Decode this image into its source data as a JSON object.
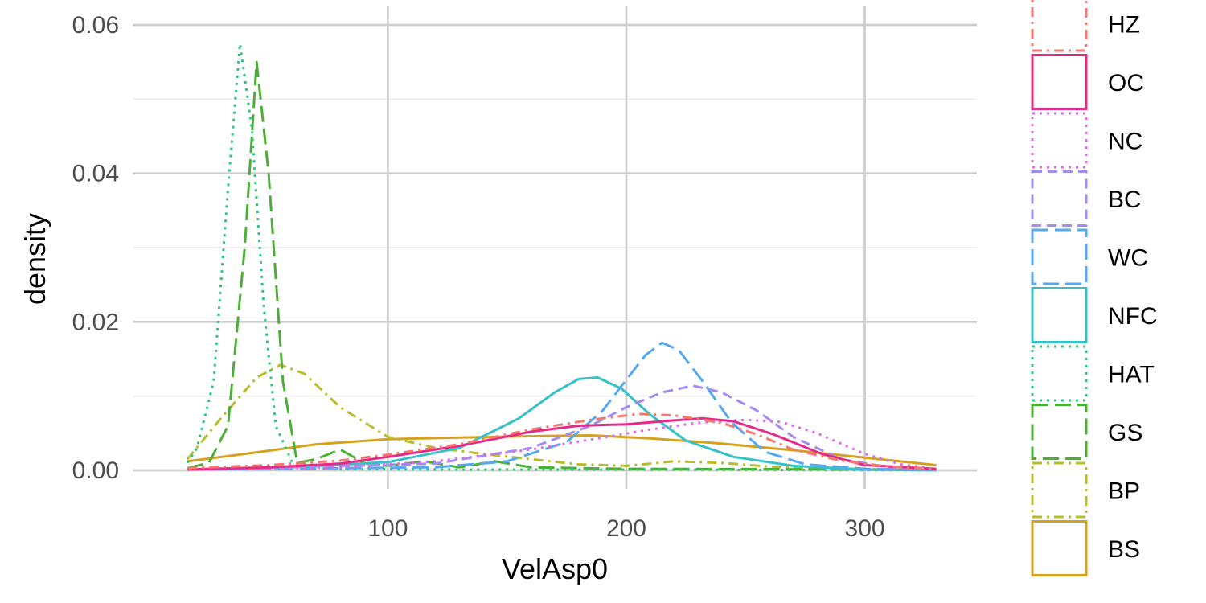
{
  "chart_data": {
    "type": "line",
    "xlabel": "VelAsp0",
    "ylabel": "density",
    "xlim": [
      -7,
      347
    ],
    "ylim": [
      -0.0025,
      0.0625
    ],
    "x_ticks": [
      100,
      200,
      300
    ],
    "x_tick_labels": [
      "100",
      "200",
      "300"
    ],
    "y_ticks": [
      0.0,
      0.02,
      0.04,
      0.06
    ],
    "y_tick_labels": [
      "0.00",
      "0.02",
      "0.04",
      "0.06"
    ],
    "grid": true,
    "legend_position": "right",
    "series": [
      {
        "name": "HZ",
        "color": "#F8766D",
        "dash": "dashdot",
        "points": [
          [
            16,
            0.0003
          ],
          [
            50,
            0.0007
          ],
          [
            80,
            0.0013
          ],
          [
            100,
            0.0021
          ],
          [
            130,
            0.0035
          ],
          [
            160,
            0.0055
          ],
          [
            185,
            0.0068
          ],
          [
            205,
            0.0076
          ],
          [
            220,
            0.0074
          ],
          [
            240,
            0.0064
          ],
          [
            255,
            0.0048
          ],
          [
            270,
            0.0028
          ],
          [
            290,
            0.0013
          ],
          [
            310,
            0.0005
          ],
          [
            330,
            0.0002
          ]
        ]
      },
      {
        "name": "OC",
        "color": "#E7298A",
        "dash": "solid",
        "points": [
          [
            16,
            0.0001
          ],
          [
            50,
            0.0004
          ],
          [
            80,
            0.0009
          ],
          [
            100,
            0.0018
          ],
          [
            130,
            0.0033
          ],
          [
            160,
            0.0052
          ],
          [
            180,
            0.006
          ],
          [
            200,
            0.0062
          ],
          [
            215,
            0.0066
          ],
          [
            232,
            0.007
          ],
          [
            245,
            0.0066
          ],
          [
            262,
            0.0048
          ],
          [
            282,
            0.0022
          ],
          [
            300,
            0.0007
          ],
          [
            330,
            0.0002
          ]
        ]
      },
      {
        "name": "NC",
        "color": "#E06BE6",
        "dash": "dotted",
        "points": [
          [
            16,
            0.0001
          ],
          [
            80,
            0.0004
          ],
          [
            120,
            0.0012
          ],
          [
            160,
            0.0028
          ],
          [
            190,
            0.0044
          ],
          [
            210,
            0.0055
          ],
          [
            230,
            0.0064
          ],
          [
            250,
            0.0068
          ],
          [
            265,
            0.0065
          ],
          [
            280,
            0.005
          ],
          [
            300,
            0.0022
          ],
          [
            315,
            0.0008
          ],
          [
            330,
            0.0002
          ]
        ]
      },
      {
        "name": "BC",
        "color": "#A38BF0",
        "dash": "dashed",
        "points": [
          [
            16,
            0.0001
          ],
          [
            120,
            0.0009
          ],
          [
            160,
            0.003
          ],
          [
            185,
            0.006
          ],
          [
            200,
            0.0085
          ],
          [
            215,
            0.0105
          ],
          [
            228,
            0.0114
          ],
          [
            240,
            0.0105
          ],
          [
            255,
            0.008
          ],
          [
            270,
            0.0045
          ],
          [
            290,
            0.0015
          ],
          [
            310,
            0.0004
          ],
          [
            330,
            0.0001
          ]
        ]
      },
      {
        "name": "WC",
        "color": "#56A8EF",
        "dash": "longdash",
        "points": [
          [
            16,
            0.0001
          ],
          [
            120,
            0.0004
          ],
          [
            150,
            0.0012
          ],
          [
            175,
            0.0038
          ],
          [
            190,
            0.008
          ],
          [
            200,
            0.0122
          ],
          [
            208,
            0.0155
          ],
          [
            215,
            0.0172
          ],
          [
            222,
            0.0162
          ],
          [
            232,
            0.012
          ],
          [
            244,
            0.0065
          ],
          [
            258,
            0.0025
          ],
          [
            275,
            0.0008
          ],
          [
            300,
            0.0002
          ],
          [
            330,
            0.0
          ]
        ]
      },
      {
        "name": "NFC",
        "color": "#35C1C8",
        "dash": "solid",
        "points": [
          [
            16,
            0.0001
          ],
          [
            60,
            0.0004
          ],
          [
            100,
            0.0011
          ],
          [
            130,
            0.003
          ],
          [
            155,
            0.007
          ],
          [
            170,
            0.0105
          ],
          [
            180,
            0.0123
          ],
          [
            188,
            0.0125
          ],
          [
            198,
            0.011
          ],
          [
            210,
            0.0075
          ],
          [
            225,
            0.004
          ],
          [
            245,
            0.0018
          ],
          [
            270,
            0.0006
          ],
          [
            300,
            0.0001
          ],
          [
            330,
            0.0
          ]
        ]
      },
      {
        "name": "HAT",
        "color": "#2CC77A",
        "dash": "dotted",
        "points": [
          [
            16,
            0.001
          ],
          [
            20,
            0.003
          ],
          [
            27,
            0.012
          ],
          [
            33,
            0.038
          ],
          [
            38,
            0.0575
          ],
          [
            43,
            0.046
          ],
          [
            48,
            0.022
          ],
          [
            53,
            0.006
          ],
          [
            60,
            0.001
          ],
          [
            80,
            0.0002
          ],
          [
            130,
            0.0001
          ],
          [
            200,
            0.0001
          ],
          [
            330,
            0.0
          ]
        ]
      },
      {
        "name": "GS",
        "color": "#4CAF35",
        "dash": "longdash",
        "points": [
          [
            16,
            0.0003
          ],
          [
            25,
            0.001
          ],
          [
            33,
            0.006
          ],
          [
            40,
            0.03
          ],
          [
            45,
            0.055
          ],
          [
            50,
            0.04
          ],
          [
            56,
            0.012
          ],
          [
            62,
            0.001
          ],
          [
            70,
            0.0015
          ],
          [
            80,
            0.0028
          ],
          [
            90,
            0.001
          ],
          [
            100,
            0.0006
          ],
          [
            115,
            0.0012
          ],
          [
            130,
            0.0004
          ],
          [
            145,
            0.0012
          ],
          [
            160,
            0.0004
          ],
          [
            200,
            0.0002
          ],
          [
            330,
            0.0001
          ]
        ]
      },
      {
        "name": "BP",
        "color": "#B8BE2A",
        "dash": "dashdot",
        "points": [
          [
            16,
            0.0015
          ],
          [
            30,
            0.007
          ],
          [
            45,
            0.0125
          ],
          [
            55,
            0.0142
          ],
          [
            65,
            0.013
          ],
          [
            80,
            0.0085
          ],
          [
            100,
            0.0045
          ],
          [
            120,
            0.003
          ],
          [
            140,
            0.0022
          ],
          [
            160,
            0.0015
          ],
          [
            180,
            0.0008
          ],
          [
            200,
            0.0006
          ],
          [
            220,
            0.0012
          ],
          [
            240,
            0.001
          ],
          [
            260,
            0.0005
          ],
          [
            290,
            0.0002
          ],
          [
            330,
            0.0001
          ]
        ]
      },
      {
        "name": "BS",
        "color": "#D4A21F",
        "dash": "solid",
        "points": [
          [
            16,
            0.0012
          ],
          [
            40,
            0.0022
          ],
          [
            70,
            0.0035
          ],
          [
            100,
            0.0042
          ],
          [
            130,
            0.0044
          ],
          [
            160,
            0.0046
          ],
          [
            185,
            0.0047
          ],
          [
            210,
            0.0043
          ],
          [
            240,
            0.0036
          ],
          [
            270,
            0.0027
          ],
          [
            300,
            0.0017
          ],
          [
            330,
            0.0007
          ]
        ]
      }
    ]
  }
}
